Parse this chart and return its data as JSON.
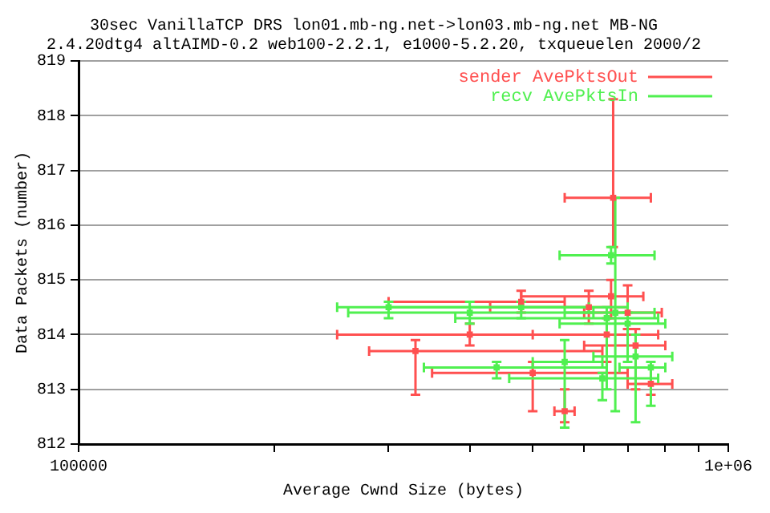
{
  "chart_data": {
    "type": "scatter",
    "title": "30sec VanillaTCP DRS lon01.mb-ng.net->lon03.mb-ng.net MB-NG",
    "subtitle": "2.4.20dtg4 altAIMD-0.2 web100-2.2.1, e1000-5.2.20, txqueuelen 2000/2",
    "xlabel": "Average Cwnd Size (bytes)",
    "ylabel": "Data Packets (number)",
    "log": "x",
    "grid": "y",
    "legend": "top right",
    "marker": "square",
    "xlim": [
      100000,
      1000000
    ],
    "xticks": [
      100000,
      {
        "value": 200000,
        "label": null
      },
      {
        "value": 300000,
        "label": null
      },
      {
        "value": 400000,
        "label": null
      },
      {
        "value": 500000,
        "label": null
      },
      {
        "value": 600000,
        "label": null
      },
      {
        "value": 700000,
        "label": null
      },
      {
        "value": 800000,
        "label": null
      },
      {
        "value": 900000,
        "label": null
      },
      {
        "value": 1000000,
        "label": "1e+06"
      }
    ],
    "ylim": [
      812,
      819
    ],
    "yticks": [
      812,
      813,
      814,
      815,
      816,
      817,
      818,
      819
    ],
    "series": [
      {
        "name": "sender AvePktsOut",
        "color": "#ff5050",
        "x": [
          665000,
          660000,
          480000,
          700000,
          650000,
          400000,
          720000,
          330000,
          500000,
          560000,
          760000,
          610000
        ],
        "values": [
          816.5,
          814.7,
          814.6,
          814.4,
          814.0,
          814.0,
          813.8,
          813.7,
          813.3,
          812.6,
          813.1,
          814.5
        ],
        "xerrors": [
          [
            560000,
            760000
          ],
          [
            480000,
            740000
          ],
          [
            300000,
            560000
          ],
          [
            600000,
            790000
          ],
          [
            500000,
            780000
          ],
          [
            250000,
            700000
          ],
          [
            600000,
            800000
          ],
          [
            280000,
            640000
          ],
          [
            350000,
            700000
          ],
          [
            540000,
            580000
          ],
          [
            700000,
            820000
          ],
          [
            430000,
            700000
          ]
        ],
        "errors": [
          [
            815.6,
            818.3
          ],
          [
            814.3,
            815.0
          ],
          [
            814.4,
            814.8
          ],
          [
            814.1,
            814.9
          ],
          [
            813.5,
            814.3
          ],
          [
            813.8,
            814.2
          ],
          [
            813.0,
            814.1
          ],
          [
            812.9,
            813.9
          ],
          [
            812.6,
            813.5
          ],
          [
            812.4,
            813.0
          ],
          [
            812.9,
            813.4
          ],
          [
            814.2,
            814.8
          ]
        ]
      },
      {
        "name": "recv AvePktsIn",
        "color": "#50f050",
        "x": [
          670000,
          660000,
          480000,
          650000,
          700000,
          400000,
          440000,
          560000,
          720000,
          640000,
          760000,
          300000
        ],
        "values": [
          814.4,
          815.45,
          814.5,
          814.3,
          814.2,
          814.4,
          813.4,
          813.5,
          813.6,
          813.2,
          813.4,
          814.5
        ],
        "xerrors": [
          [
            560000,
            770000
          ],
          [
            550000,
            770000
          ],
          [
            300000,
            700000
          ],
          [
            380000,
            780000
          ],
          [
            550000,
            800000
          ],
          [
            260000,
            620000
          ],
          [
            340000,
            650000
          ],
          [
            500000,
            640000
          ],
          [
            620000,
            820000
          ],
          [
            460000,
            780000
          ],
          [
            680000,
            800000
          ],
          [
            250000,
            610000
          ]
        ],
        "errors": [
          [
            812.6,
            816.5
          ],
          [
            815.3,
            815.6
          ],
          [
            814.3,
            814.6
          ],
          [
            813.0,
            814.5
          ],
          [
            813.5,
            814.4
          ],
          [
            814.2,
            814.6
          ],
          [
            813.2,
            813.5
          ],
          [
            812.3,
            813.9
          ],
          [
            812.4,
            814.0
          ],
          [
            812.8,
            813.3
          ],
          [
            812.7,
            813.5
          ],
          [
            814.3,
            814.6
          ]
        ]
      }
    ]
  }
}
